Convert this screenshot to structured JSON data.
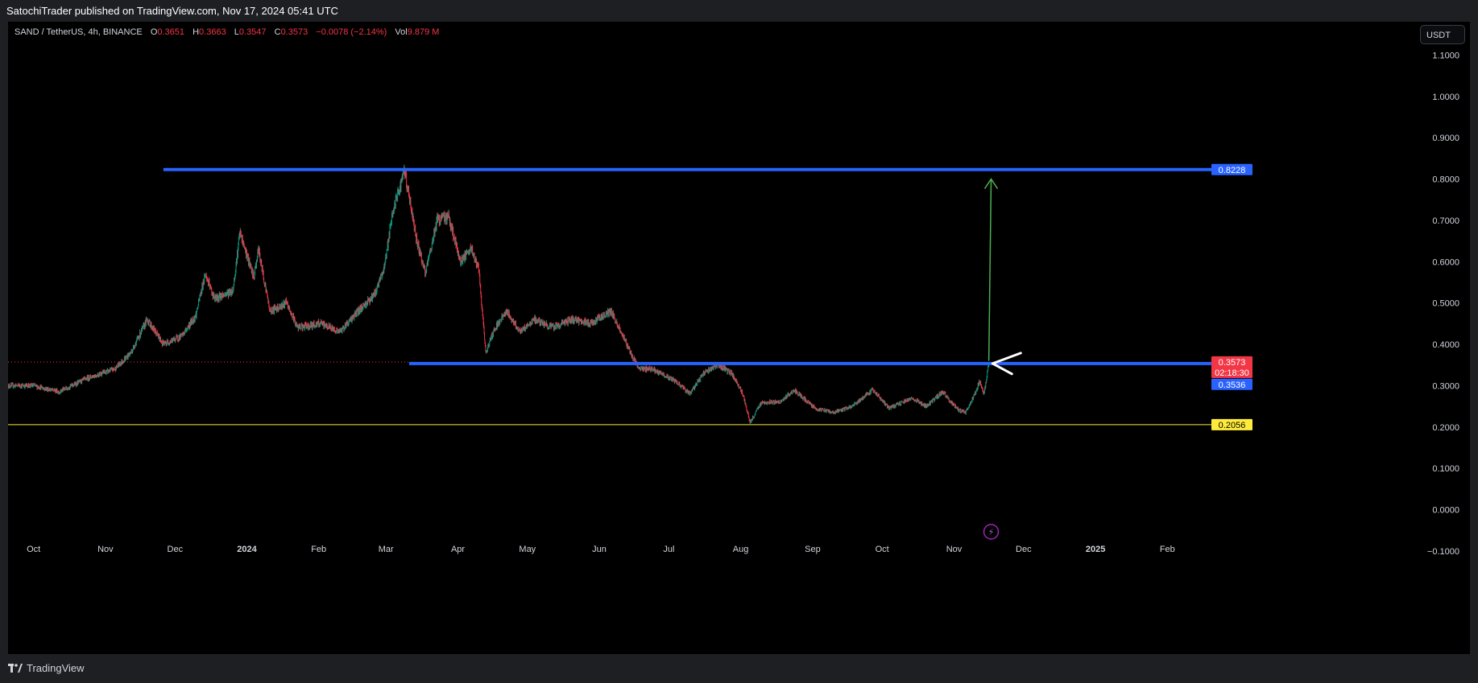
{
  "header": {
    "published": "SatochiTrader published on TradingView.com, Nov 17, 2024 05:41 UTC"
  },
  "legend": {
    "symbol": "SAND / TetherUS, 4h, BINANCE",
    "o_label": "O",
    "o_value": "0.3651",
    "h_label": "H",
    "h_value": "0.3663",
    "l_label": "L",
    "l_value": "0.3547",
    "c_label": "C",
    "c_value": "0.3573",
    "change": "−0.0078 (−2.14%)",
    "vol_label": "Vol",
    "vol_value": "9.879 M"
  },
  "currency_button": "USDT",
  "footer": {
    "brand": "TradingView"
  },
  "colors": {
    "up": "#089981",
    "down": "#f23645",
    "level_blue": "#2962ff",
    "level_yellow": "#ffeb3b",
    "target_arrow": "#4caf50",
    "last_price": "#f23645"
  },
  "chart_data": {
    "type": "candlestick",
    "title": "SAND / TetherUS, 4h, BINANCE",
    "y_axis": {
      "range": [
        -0.11,
        1.13
      ],
      "ticks": [
        "1.1000",
        "1.0000",
        "0.9000",
        "0.8000",
        "0.7000",
        "0.6000",
        "0.5000",
        "0.4000",
        "0.3000",
        "0.2000",
        "0.1000",
        "0.0000",
        "−0.1000"
      ],
      "tick_values": [
        1.1,
        1.0,
        0.9,
        0.8,
        0.7,
        0.6,
        0.5,
        0.4,
        0.3,
        0.2,
        0.1,
        0.0,
        -0.1
      ]
    },
    "x_axis": {
      "range": [
        "2023-09-20",
        "2025-02-20"
      ],
      "ticks": [
        {
          "label": "Oct",
          "date": "2023-10-01"
        },
        {
          "label": "Nov",
          "date": "2023-11-01"
        },
        {
          "label": "Dec",
          "date": "2023-12-01"
        },
        {
          "label": "2024",
          "date": "2024-01-01",
          "bold": true
        },
        {
          "label": "Feb",
          "date": "2024-02-01"
        },
        {
          "label": "Mar",
          "date": "2024-03-01"
        },
        {
          "label": "Apr",
          "date": "2024-04-01"
        },
        {
          "label": "May",
          "date": "2024-05-01"
        },
        {
          "label": "Jun",
          "date": "2024-06-01"
        },
        {
          "label": "Jul",
          "date": "2024-07-01"
        },
        {
          "label": "Aug",
          "date": "2024-08-01"
        },
        {
          "label": "Sep",
          "date": "2024-09-01"
        },
        {
          "label": "Oct",
          "date": "2024-10-01"
        },
        {
          "label": "Nov",
          "date": "2024-11-01"
        },
        {
          "label": "Dec",
          "date": "2024-12-01"
        },
        {
          "label": "2025",
          "date": "2025-01-01",
          "bold": true
        },
        {
          "label": "Feb",
          "date": "2025-02-01"
        }
      ]
    },
    "price_path": [
      {
        "date": "2023-09-20",
        "price": 0.3
      },
      {
        "date": "2023-10-01",
        "price": 0.3
      },
      {
        "date": "2023-10-12",
        "price": 0.285
      },
      {
        "date": "2023-10-25",
        "price": 0.32
      },
      {
        "date": "2023-11-05",
        "price": 0.34
      },
      {
        "date": "2023-11-12",
        "price": 0.38
      },
      {
        "date": "2023-11-19",
        "price": 0.46
      },
      {
        "date": "2023-11-26",
        "price": 0.4
      },
      {
        "date": "2023-12-04",
        "price": 0.42
      },
      {
        "date": "2023-12-10",
        "price": 0.47
      },
      {
        "date": "2023-12-14",
        "price": 0.57
      },
      {
        "date": "2023-12-18",
        "price": 0.51
      },
      {
        "date": "2023-12-26",
        "price": 0.53
      },
      {
        "date": "2023-12-29",
        "price": 0.67
      },
      {
        "date": "2024-01-04",
        "price": 0.56
      },
      {
        "date": "2024-01-06",
        "price": 0.63
      },
      {
        "date": "2024-01-11",
        "price": 0.48
      },
      {
        "date": "2024-01-18",
        "price": 0.5
      },
      {
        "date": "2024-01-23",
        "price": 0.44
      },
      {
        "date": "2024-02-02",
        "price": 0.45
      },
      {
        "date": "2024-02-10",
        "price": 0.43
      },
      {
        "date": "2024-02-18",
        "price": 0.48
      },
      {
        "date": "2024-02-25",
        "price": 0.52
      },
      {
        "date": "2024-02-29",
        "price": 0.58
      },
      {
        "date": "2024-03-04",
        "price": 0.72
      },
      {
        "date": "2024-03-09",
        "price": 0.82
      },
      {
        "date": "2024-03-14",
        "price": 0.66
      },
      {
        "date": "2024-03-18",
        "price": 0.57
      },
      {
        "date": "2024-03-23",
        "price": 0.7
      },
      {
        "date": "2024-03-28",
        "price": 0.71
      },
      {
        "date": "2024-04-02",
        "price": 0.6
      },
      {
        "date": "2024-04-07",
        "price": 0.63
      },
      {
        "date": "2024-04-10",
        "price": 0.58
      },
      {
        "date": "2024-04-13",
        "price": 0.38
      },
      {
        "date": "2024-04-17",
        "price": 0.44
      },
      {
        "date": "2024-04-22",
        "price": 0.48
      },
      {
        "date": "2024-04-28",
        "price": 0.43
      },
      {
        "date": "2024-05-04",
        "price": 0.46
      },
      {
        "date": "2024-05-12",
        "price": 0.44
      },
      {
        "date": "2024-05-20",
        "price": 0.46
      },
      {
        "date": "2024-05-28",
        "price": 0.45
      },
      {
        "date": "2024-06-06",
        "price": 0.48
      },
      {
        "date": "2024-06-12",
        "price": 0.41
      },
      {
        "date": "2024-06-18",
        "price": 0.34
      },
      {
        "date": "2024-06-24",
        "price": 0.34
      },
      {
        "date": "2024-07-04",
        "price": 0.31
      },
      {
        "date": "2024-07-10",
        "price": 0.28
      },
      {
        "date": "2024-07-16",
        "price": 0.33
      },
      {
        "date": "2024-07-22",
        "price": 0.35
      },
      {
        "date": "2024-07-28",
        "price": 0.33
      },
      {
        "date": "2024-08-02",
        "price": 0.28
      },
      {
        "date": "2024-08-05",
        "price": 0.21
      },
      {
        "date": "2024-08-10",
        "price": 0.26
      },
      {
        "date": "2024-08-18",
        "price": 0.26
      },
      {
        "date": "2024-08-24",
        "price": 0.29
      },
      {
        "date": "2024-09-02",
        "price": 0.245
      },
      {
        "date": "2024-09-10",
        "price": 0.235
      },
      {
        "date": "2024-09-18",
        "price": 0.25
      },
      {
        "date": "2024-09-27",
        "price": 0.29
      },
      {
        "date": "2024-10-04",
        "price": 0.245
      },
      {
        "date": "2024-10-14",
        "price": 0.27
      },
      {
        "date": "2024-10-20",
        "price": 0.25
      },
      {
        "date": "2024-10-27",
        "price": 0.285
      },
      {
        "date": "2024-11-03",
        "price": 0.24
      },
      {
        "date": "2024-11-06",
        "price": 0.235
      },
      {
        "date": "2024-11-10",
        "price": 0.28
      },
      {
        "date": "2024-11-12",
        "price": 0.31
      },
      {
        "date": "2024-11-14",
        "price": 0.28
      },
      {
        "date": "2024-11-16",
        "price": 0.3573
      }
    ],
    "horizontal_levels": [
      {
        "price": 0.8228,
        "label": "0.8228",
        "color": "#2962ff",
        "from": "2023-11-26"
      },
      {
        "price": 0.3536,
        "label": "0.3536",
        "color": "#2962ff",
        "from": "2024-03-11"
      },
      {
        "price": 0.2056,
        "label": "0.2056",
        "color": "#ffeb3b",
        "from": "2023-09-20"
      }
    ],
    "last_price": {
      "price": 0.3573,
      "label": "0.3573",
      "countdown": "02:18:30",
      "from": "2023-09-20",
      "color": "#f23645"
    },
    "projection_arrow": {
      "from_date": "2024-11-16",
      "from_price": 0.36,
      "to_date": "2024-11-17",
      "to_price": 0.8,
      "color": "#4caf50"
    },
    "pointer_arrow": {
      "date": "2024-11-19",
      "price": 0.3536,
      "color": "#ffffff"
    },
    "events_icon": {
      "date": "2024-11-17",
      "symbol": "⚡"
    }
  }
}
